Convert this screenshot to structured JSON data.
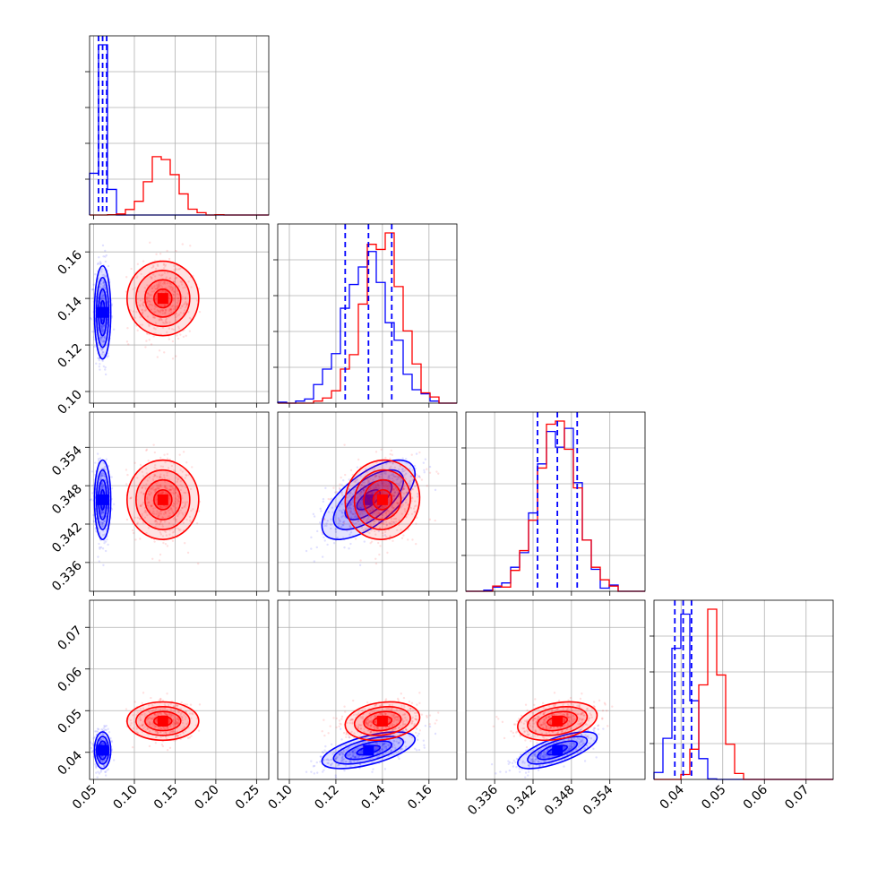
{
  "chart_data": {
    "type": "scatter",
    "subtype": "corner-plot",
    "parameters": 4,
    "colors": {
      "series_a": "#0000ff",
      "series_b": "#ff0000"
    },
    "grid": true,
    "legend": "none",
    "axis_ranges": [
      [
        0.045,
        0.265
      ],
      [
        0.095,
        0.172
      ],
      [
        0.3315,
        0.3595
      ],
      [
        0.0335,
        0.0765
      ]
    ],
    "ticks": [
      [
        "0.05",
        "0.10",
        "0.15",
        "0.20",
        "0.25"
      ],
      [
        "0.10",
        "0.12",
        "0.14",
        "0.16"
      ],
      [
        "0.336",
        "0.342",
        "0.348",
        "0.354"
      ],
      [
        "0.04",
        "0.05",
        "0.06",
        "0.07"
      ]
    ],
    "tick_values": [
      [
        0.05,
        0.1,
        0.15,
        0.2,
        0.25
      ],
      [
        0.1,
        0.12,
        0.14,
        0.16
      ],
      [
        0.336,
        0.342,
        0.348,
        0.354
      ],
      [
        0.04,
        0.05,
        0.06,
        0.07
      ]
    ],
    "quantile_lines": [
      [
        0.056,
        0.061,
        0.066
      ],
      [
        0.124,
        0.134,
        0.144
      ],
      [
        0.3427,
        0.3458,
        0.3489
      ],
      [
        0.0385,
        0.0405,
        0.0425
      ]
    ],
    "series": [
      {
        "color": "#0000ff",
        "mean": [
          0.061,
          0.134,
          0.3458,
          0.0405
        ],
        "std": [
          0.005,
          0.01,
          0.0031,
          0.0022
        ],
        "correlation": [
          [
            1,
            0,
            0,
            0
          ],
          [
            0,
            1,
            0.65,
            0.6
          ],
          [
            0,
            0.65,
            1,
            0.7
          ],
          [
            0,
            0.6,
            0.7,
            1
          ]
        ]
      },
      {
        "color": "#ff0000",
        "mean": [
          0.135,
          0.14,
          0.3458,
          0.0475
        ],
        "std": [
          0.022,
          0.008,
          0.0031,
          0.0023
        ],
        "correlation": [
          [
            1,
            0,
            0,
            0
          ],
          [
            0,
            1,
            0.05,
            0.2
          ],
          [
            0,
            0.05,
            1,
            0.3
          ],
          [
            0,
            0.2,
            0.3,
            1
          ]
        ]
      }
    ]
  }
}
